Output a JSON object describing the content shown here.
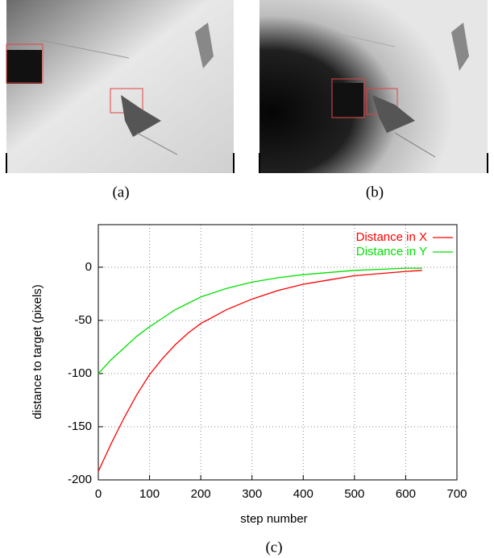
{
  "panels": [
    {
      "caption": "(a)"
    },
    {
      "caption": "(b)"
    }
  ],
  "chart_data": {
    "type": "line",
    "caption": "(c)",
    "x_label": "step number",
    "y_label": "distance to target (pixels)",
    "x": [
      0,
      25,
      50,
      75,
      100,
      125,
      150,
      175,
      200,
      250,
      300,
      350,
      400,
      450,
      500,
      550,
      600,
      632
    ],
    "series": [
      {
        "name": "Distance in X",
        "color": "#ff0000",
        "values": [
          -192,
          -166,
          -142,
          -120,
          -101,
          -86,
          -73,
          -62,
          -53,
          -40,
          -30,
          -22,
          -16,
          -12,
          -8,
          -6,
          -4,
          -3
        ]
      },
      {
        "name": "Distance in Y",
        "color": "#00e000",
        "values": [
          -100,
          -87,
          -76,
          -65,
          -56,
          -48,
          -40,
          -34,
          -28,
          -20,
          -14,
          -10,
          -7,
          -5,
          -3,
          -2,
          -1,
          -1
        ]
      }
    ],
    "xlim": [
      0,
      700
    ],
    "xticks": [
      0,
      100,
      200,
      300,
      400,
      500,
      600,
      700
    ],
    "ylim": [
      -200,
      40
    ],
    "yticks": [
      -200,
      -150,
      -100,
      -50,
      0
    ],
    "grid": true,
    "legend": "top-right"
  }
}
